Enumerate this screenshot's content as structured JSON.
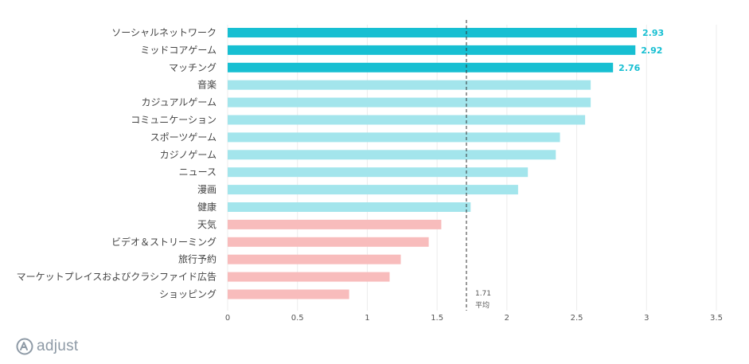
{
  "chart_data": {
    "type": "bar",
    "orientation": "horizontal",
    "categories": [
      "ソーシャルネットワーク",
      "ミッドコアゲーム",
      "マッチング",
      "音楽",
      "カジュアルゲーム",
      "コミュニケーション",
      "スポーツゲーム",
      "カジノゲーム",
      "ニュース",
      "漫画",
      "健康",
      "天気",
      "ビデオ＆ストリーミング",
      "旅行予約",
      "マーケットプレイスおよびクラシファイド広告",
      "ショッピング"
    ],
    "values": [
      2.93,
      2.92,
      2.76,
      2.6,
      2.6,
      2.56,
      2.38,
      2.35,
      2.15,
      2.08,
      1.74,
      1.53,
      1.44,
      1.24,
      1.16,
      0.87
    ],
    "value_labels": [
      "2.93",
      "2.92",
      "2.76",
      "",
      "",
      "",
      "",
      "",
      "",
      "",
      "",
      "",
      "",
      "",
      "",
      ""
    ],
    "bar_colors": [
      "#17bfd2",
      "#17bfd2",
      "#17bfd2",
      "#a3e5ec",
      "#a3e5ec",
      "#a3e5ec",
      "#a3e5ec",
      "#a3e5ec",
      "#a3e5ec",
      "#a3e5ec",
      "#a3e5ec",
      "#f8bcbc",
      "#f8bcbc",
      "#f8bcbc",
      "#f8bcbc",
      "#f8bcbc"
    ],
    "xlim": [
      0,
      3.5
    ],
    "xticks": [
      0,
      0.5,
      1,
      1.5,
      2,
      2.5,
      3,
      3.5
    ],
    "xtick_labels": [
      "0",
      "0.5",
      "1",
      "1.5",
      "2",
      "2.5",
      "3",
      "3.5"
    ],
    "grid": "vertical",
    "average": {
      "value": 1.71,
      "value_label": "1.71",
      "label": "平均"
    },
    "title": "",
    "xlabel": "",
    "ylabel": ""
  },
  "branding": {
    "logo_text": "adjust",
    "logo_color": "#8e9aa6"
  }
}
